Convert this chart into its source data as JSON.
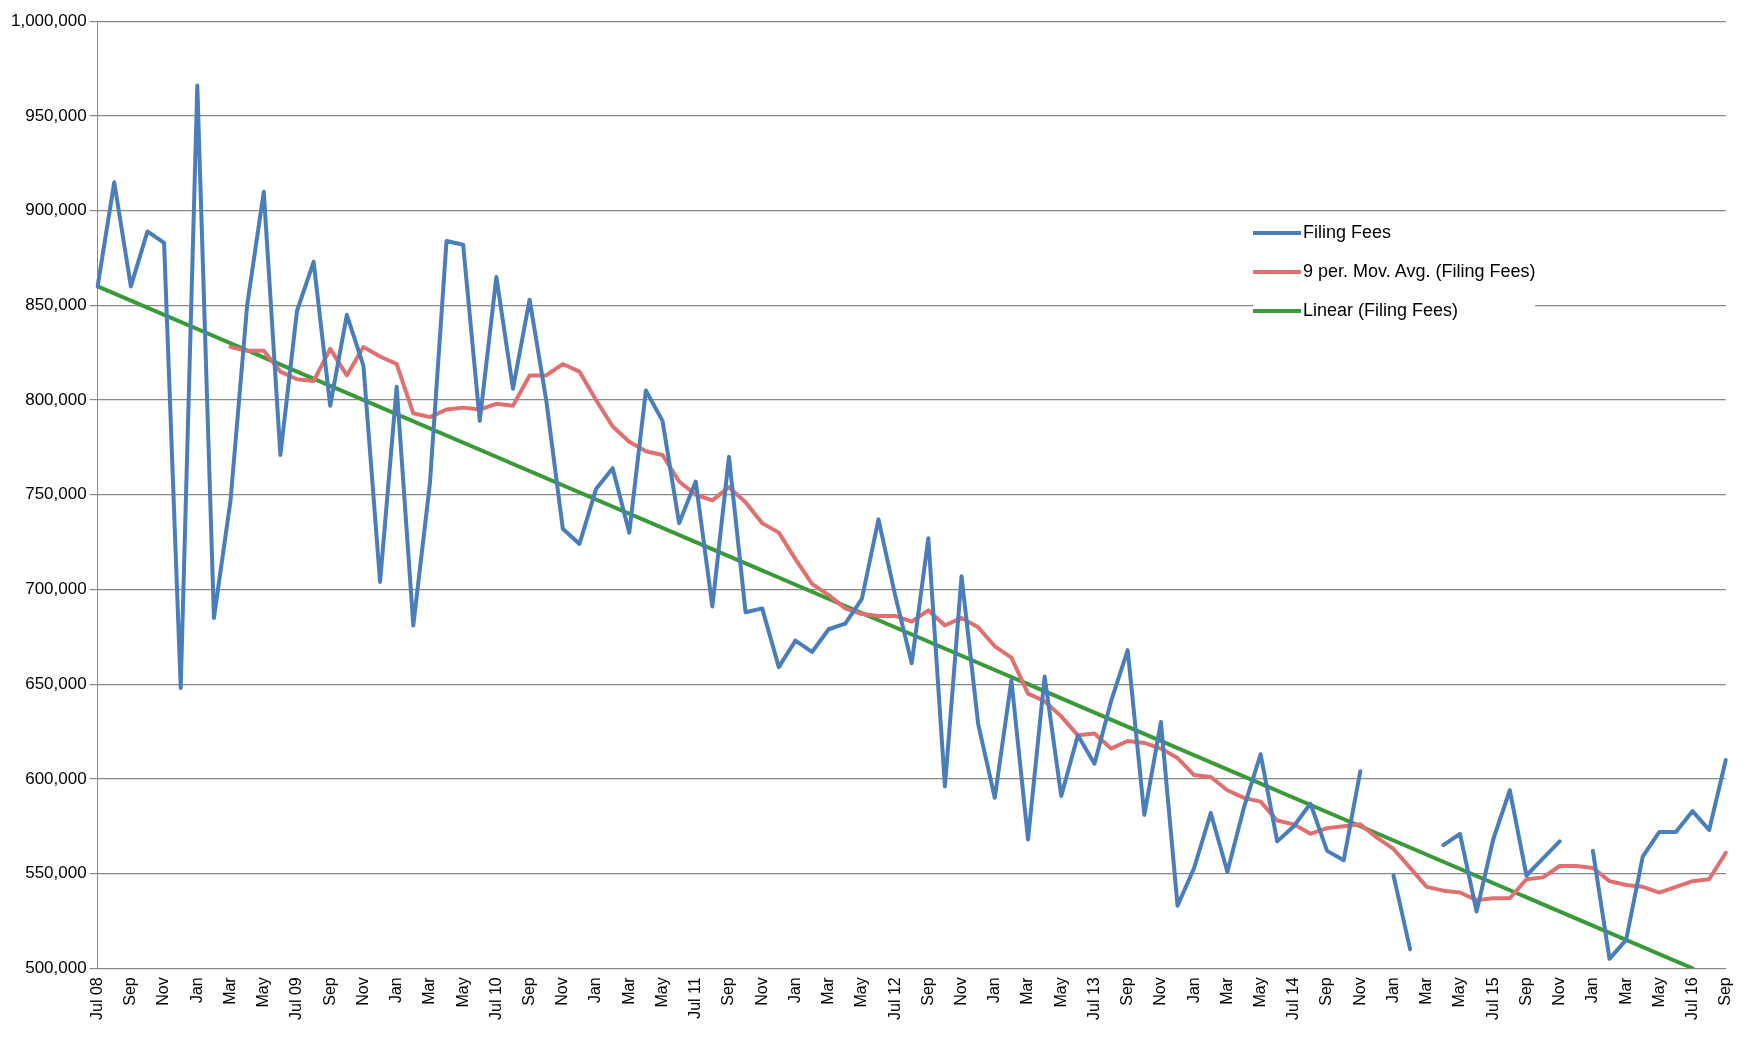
{
  "chart_data": {
    "type": "line",
    "categories": [
      "Jul 08",
      null,
      "Sep",
      null,
      "Nov",
      null,
      "Jan",
      null,
      "Mar",
      null,
      "May",
      null,
      "Jul 09",
      null,
      "Sep",
      null,
      "Nov",
      null,
      "Jan",
      null,
      "Mar",
      null,
      "May",
      null,
      "Jul 10",
      null,
      "Sep",
      null,
      "Nov",
      null,
      "Jan",
      null,
      "Mar",
      null,
      "May",
      null,
      "Jul 11",
      null,
      "Sep",
      null,
      "Nov",
      null,
      "Jan",
      null,
      "Mar",
      null,
      "May",
      null,
      "Jul 12",
      null,
      "Sep",
      null,
      "Nov",
      null,
      "Jan",
      null,
      "Mar",
      null,
      "May",
      null,
      "Jul 13",
      null,
      "Sep",
      null,
      "Nov",
      null,
      "Jan",
      null,
      "Mar",
      null,
      "May",
      null,
      "Jul 14",
      null,
      "Sep",
      null,
      "Nov",
      null,
      "Jan",
      null,
      "Mar",
      null,
      "May",
      null,
      "Jul 15",
      null,
      "Sep",
      null,
      "Nov",
      null,
      "Jan",
      null,
      "Mar",
      null,
      "May",
      null,
      "Jul 16",
      null,
      "Sep"
    ],
    "series": [
      {
        "name": "Filing Fees",
        "color": "#4a7ebb",
        "values": [
          860000,
          915000,
          860000,
          889000,
          883000,
          648000,
          966000,
          685000,
          747000,
          850000,
          910000,
          771000,
          847000,
          873000,
          797000,
          845000,
          818000,
          704000,
          807000,
          681000,
          756000,
          884000,
          882000,
          789000,
          865000,
          806000,
          853000,
          800000,
          732000,
          724000,
          753000,
          764000,
          730000,
          805000,
          789000,
          735000,
          757000,
          691000,
          770000,
          688000,
          690000,
          659000,
          673000,
          667000,
          679000,
          682000,
          695000,
          737000,
          697000,
          661000,
          727000,
          596000,
          707000,
          629000,
          590000,
          652000,
          568000,
          654000,
          591000,
          623000,
          608000,
          641000,
          668000,
          581000,
          630000,
          533000,
          553000,
          582000,
          551000,
          585000,
          613000,
          567000,
          575000,
          587000,
          562000,
          557000,
          604000,
          null,
          549000,
          510000,
          null,
          565000,
          571000,
          530000,
          568000,
          594000,
          549000,
          558000,
          567000,
          null,
          562000,
          505000,
          515000,
          559000,
          572000,
          572000,
          583000,
          573000,
          610000
        ]
      },
      {
        "name": "9 per. Mov. Avg. (Filing Fees)",
        "color": "#e07070",
        "values": [
          null,
          null,
          null,
          null,
          null,
          null,
          null,
          null,
          828000,
          826000,
          826000,
          815000,
          811000,
          810000,
          827000,
          813000,
          828000,
          823000,
          819000,
          793000,
          791000,
          795000,
          796000,
          795000,
          798000,
          797000,
          813000,
          813000,
          819000,
          815000,
          800000,
          786000,
          778000,
          773000,
          771000,
          757000,
          750000,
          747000,
          754000,
          746000,
          735000,
          730000,
          716000,
          703000,
          697000,
          690000,
          687000,
          686000,
          686000,
          683000,
          689000,
          681000,
          685000,
          680000,
          670000,
          664000,
          645000,
          641000,
          633000,
          623000,
          624000,
          616000,
          620000,
          619000,
          616000,
          611000,
          602000,
          601000,
          594000,
          590000,
          588000,
          578000,
          576000,
          571000,
          574000,
          575000,
          576000,
          569000,
          563000,
          553000,
          543000,
          541000,
          540000,
          536000,
          537000,
          537000,
          547000,
          548000,
          554000,
          554000,
          553000,
          546000,
          544000,
          543000,
          540000,
          543000,
          546000,
          547000,
          561000
        ]
      },
      {
        "name": "Linear (Filing Fees)",
        "color": "#3a9a3a",
        "values": [
          860000,
          null,
          null,
          null,
          null,
          null,
          null,
          null,
          null,
          null,
          null,
          null,
          null,
          null,
          null,
          null,
          null,
          null,
          null,
          null,
          null,
          null,
          null,
          null,
          null,
          null,
          null,
          null,
          null,
          null,
          null,
          null,
          null,
          null,
          null,
          null,
          null,
          null,
          null,
          null,
          null,
          null,
          null,
          null,
          null,
          null,
          null,
          null,
          null,
          null,
          null,
          null,
          null,
          null,
          null,
          null,
          null,
          null,
          null,
          null,
          null,
          null,
          null,
          null,
          null,
          null,
          null,
          null,
          null,
          null,
          null,
          null,
          null,
          null,
          null,
          null,
          null,
          null,
          null,
          null,
          null,
          null,
          null,
          null,
          null,
          null,
          null,
          null,
          null,
          null,
          null,
          null,
          null,
          null,
          null,
          null,
          500000,
          null,
          null
        ]
      }
    ],
    "ylim": [
      500000,
      1000000
    ],
    "yticks": [
      {
        "value": 500000,
        "label": "500,000"
      },
      {
        "value": 550000,
        "label": "550,000"
      },
      {
        "value": 600000,
        "label": "600,000"
      },
      {
        "value": 650000,
        "label": "650,000"
      },
      {
        "value": 700000,
        "label": "700,000"
      },
      {
        "value": 750000,
        "label": "750,000"
      },
      {
        "value": 800000,
        "label": "800,000"
      },
      {
        "value": 850000,
        "label": "850,000"
      },
      {
        "value": 900000,
        "label": "900,000"
      },
      {
        "value": 950000,
        "label": "950,000"
      },
      {
        "value": 1000000,
        "label": "1,000,000"
      }
    ],
    "grid": "y",
    "legend": "top right",
    "marker": "none",
    "line_style": "solid"
  }
}
